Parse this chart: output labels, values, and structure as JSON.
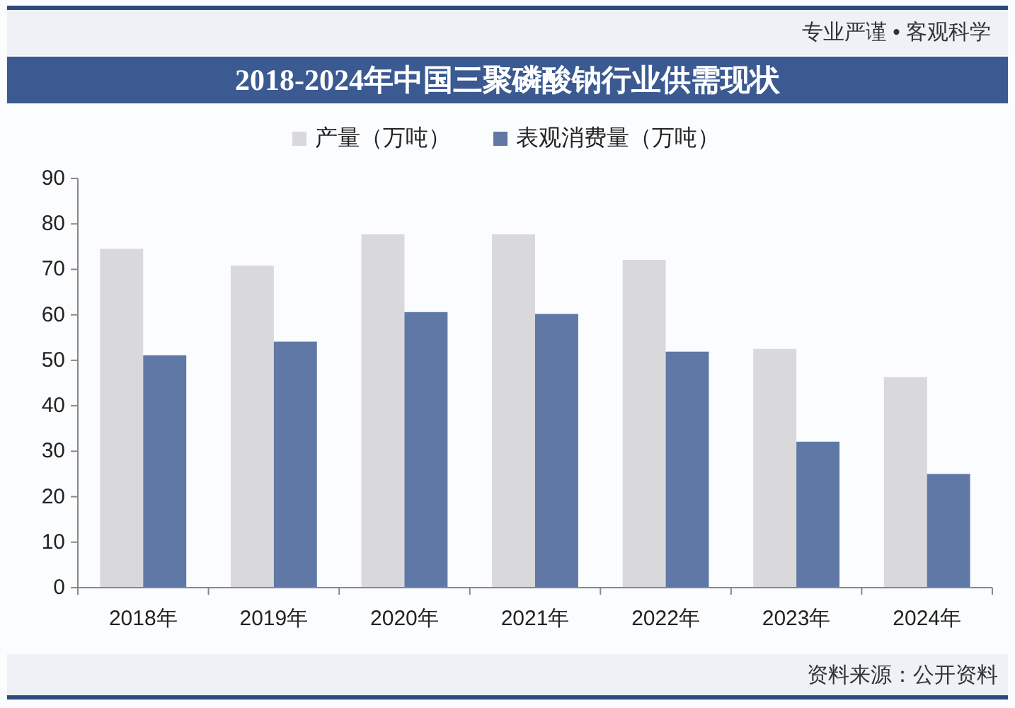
{
  "chart_data": {
    "type": "bar",
    "title": "2018-2024年中国三聚磷酸钠行业供需现状",
    "categories": [
      "2018年",
      "2019年",
      "2020年",
      "2021年",
      "2022年",
      "2023年",
      "2024年"
    ],
    "series": [
      {
        "name": "产量（万吨）",
        "color": "#d9d9db",
        "values": [
          74.5,
          70.8,
          77.7,
          77.7,
          72.1,
          52.5,
          46.3
        ]
      },
      {
        "name": "表观消费量（万吨）",
        "color": "#5f78a5",
        "values": [
          51.1,
          54.1,
          60.6,
          60.2,
          51.9,
          32.1,
          25.0
        ]
      }
    ],
    "ylim": [
      0,
      90
    ],
    "yticks": [
      0,
      10,
      20,
      30,
      40,
      50,
      60,
      70,
      80,
      90
    ],
    "legend": "top",
    "annotations": [
      "专业严谨 • 客观科学",
      "资料来源：公开资料"
    ]
  }
}
